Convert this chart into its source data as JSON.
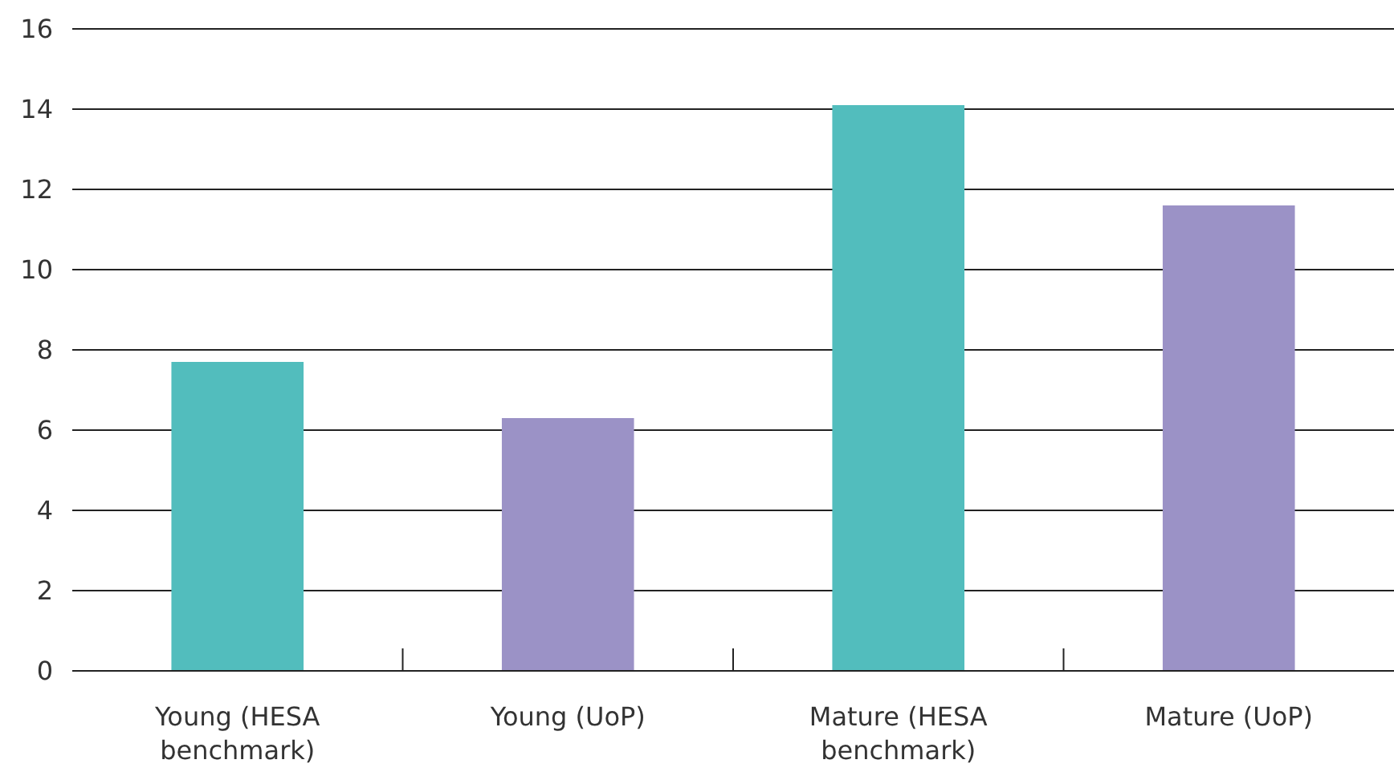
{
  "chart_data": {
    "type": "bar",
    "categories": [
      "Young (HESA benchmark)",
      "Young (UoP)",
      "Mature (HESA benchmark)",
      "Mature (UoP)"
    ],
    "values": [
      7.7,
      6.3,
      14.1,
      11.6
    ],
    "colors": [
      "#52bdbd",
      "#9b92c6",
      "#52bdbd",
      "#9b92c6"
    ],
    "ylim": [
      0,
      16
    ],
    "yticks": [
      0,
      2,
      4,
      6,
      8,
      10,
      12,
      14,
      16
    ],
    "grid": "y"
  }
}
